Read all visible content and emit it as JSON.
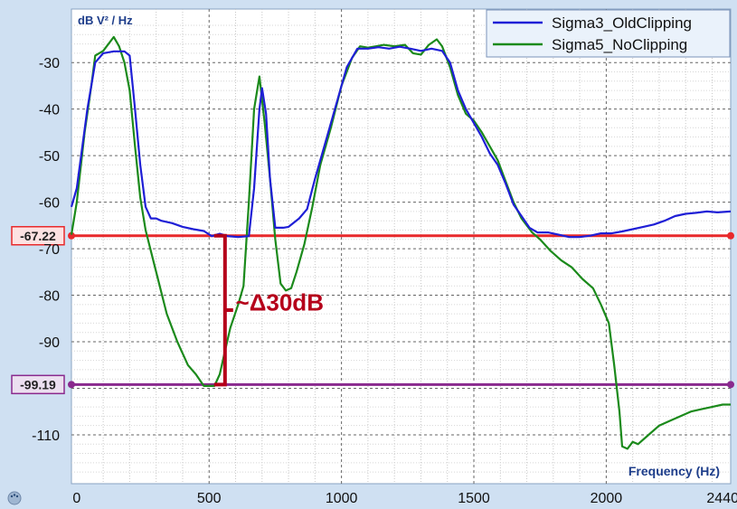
{
  "chart_data": {
    "type": "line",
    "ylabel": "dB V² / Hz",
    "xlabel": "Frequency (Hz)",
    "xlim": [
      -20,
      2470
    ],
    "ylim": [
      -120.5,
      -18.5
    ],
    "x_ticks": [
      0,
      500,
      1000,
      1500,
      2000,
      2440
    ],
    "y_ticks": [
      -30,
      -40,
      -50,
      -60,
      -70,
      -80,
      -90,
      -110
    ],
    "grid": true,
    "legend_position": "top-right",
    "series": [
      {
        "name": "Sigma3_OldClipping",
        "color": "#1f1fd6",
        "points": [
          [
            -20,
            -61
          ],
          [
            0,
            -57
          ],
          [
            40,
            -40
          ],
          [
            70,
            -30
          ],
          [
            100,
            -28
          ],
          [
            140,
            -27.6
          ],
          [
            180,
            -27.6
          ],
          [
            200,
            -28.5
          ],
          [
            220,
            -40
          ],
          [
            240,
            -52
          ],
          [
            260,
            -61
          ],
          [
            280,
            -63.5
          ],
          [
            300,
            -63.5
          ],
          [
            320,
            -64
          ],
          [
            360,
            -64.5
          ],
          [
            400,
            -65.3
          ],
          [
            440,
            -65.8
          ],
          [
            480,
            -66.2
          ],
          [
            510,
            -67.3
          ],
          [
            540,
            -66.8
          ],
          [
            570,
            -67.3
          ],
          [
            610,
            -67.5
          ],
          [
            650,
            -67.3
          ],
          [
            670,
            -57
          ],
          [
            690,
            -40
          ],
          [
            700,
            -35.5
          ],
          [
            715,
            -41
          ],
          [
            730,
            -55
          ],
          [
            750,
            -65.5
          ],
          [
            780,
            -65.5
          ],
          [
            800,
            -65.3
          ],
          [
            840,
            -63.5
          ],
          [
            870,
            -61.5
          ],
          [
            900,
            -55
          ],
          [
            940,
            -47
          ],
          [
            980,
            -39
          ],
          [
            1020,
            -31
          ],
          [
            1060,
            -27
          ],
          [
            1100,
            -27
          ],
          [
            1140,
            -26.7
          ],
          [
            1180,
            -27
          ],
          [
            1220,
            -26.6
          ],
          [
            1260,
            -27
          ],
          [
            1300,
            -27.5
          ],
          [
            1340,
            -27
          ],
          [
            1380,
            -27.5
          ],
          [
            1410,
            -30
          ],
          [
            1440,
            -36
          ],
          [
            1470,
            -40
          ],
          [
            1500,
            -43
          ],
          [
            1530,
            -46
          ],
          [
            1560,
            -49.5
          ],
          [
            1590,
            -52
          ],
          [
            1620,
            -56
          ],
          [
            1650,
            -60.5
          ],
          [
            1680,
            -63
          ],
          [
            1710,
            -65.5
          ],
          [
            1740,
            -66.5
          ],
          [
            1780,
            -66.5
          ],
          [
            1820,
            -67
          ],
          [
            1860,
            -67.5
          ],
          [
            1900,
            -67.5
          ],
          [
            1940,
            -67.2
          ],
          [
            1980,
            -66.7
          ],
          [
            2020,
            -66.7
          ],
          [
            2060,
            -66.3
          ],
          [
            2100,
            -65.8
          ],
          [
            2140,
            -65.3
          ],
          [
            2180,
            -64.8
          ],
          [
            2220,
            -64
          ],
          [
            2260,
            -63
          ],
          [
            2300,
            -62.5
          ],
          [
            2340,
            -62.3
          ],
          [
            2380,
            -62
          ],
          [
            2420,
            -62.2
          ],
          [
            2470,
            -62
          ]
        ]
      },
      {
        "name": "Sigma5_NoClipping",
        "color": "#1b8a1b",
        "points": [
          [
            -20,
            -67
          ],
          [
            0,
            -60
          ],
          [
            30,
            -45
          ],
          [
            55,
            -35
          ],
          [
            70,
            -28.5
          ],
          [
            100,
            -27.5
          ],
          [
            120,
            -26
          ],
          [
            140,
            -24.5
          ],
          [
            160,
            -26.5
          ],
          [
            180,
            -30
          ],
          [
            200,
            -36
          ],
          [
            220,
            -48
          ],
          [
            240,
            -59
          ],
          [
            260,
            -66
          ],
          [
            300,
            -75
          ],
          [
            340,
            -84
          ],
          [
            380,
            -90
          ],
          [
            420,
            -95
          ],
          [
            450,
            -97
          ],
          [
            480,
            -99.5
          ],
          [
            500,
            -99.5
          ],
          [
            520,
            -99.5
          ],
          [
            540,
            -97
          ],
          [
            560,
            -92
          ],
          [
            580,
            -87
          ],
          [
            610,
            -82
          ],
          [
            630,
            -78
          ],
          [
            650,
            -60
          ],
          [
            670,
            -40
          ],
          [
            690,
            -33
          ],
          [
            710,
            -43
          ],
          [
            730,
            -55
          ],
          [
            750,
            -68
          ],
          [
            770,
            -77.5
          ],
          [
            790,
            -79
          ],
          [
            810,
            -78.5
          ],
          [
            830,
            -75
          ],
          [
            860,
            -69
          ],
          [
            890,
            -61
          ],
          [
            920,
            -52
          ],
          [
            960,
            -44
          ],
          [
            1000,
            -35
          ],
          [
            1040,
            -29
          ],
          [
            1070,
            -26.5
          ],
          [
            1100,
            -26.8
          ],
          [
            1130,
            -26.5
          ],
          [
            1160,
            -26.2
          ],
          [
            1200,
            -26.5
          ],
          [
            1240,
            -26.2
          ],
          [
            1270,
            -28
          ],
          [
            1300,
            -28.3
          ],
          [
            1330,
            -26.2
          ],
          [
            1360,
            -25
          ],
          [
            1380,
            -26.5
          ],
          [
            1410,
            -31
          ],
          [
            1440,
            -37
          ],
          [
            1470,
            -41
          ],
          [
            1500,
            -42.5
          ],
          [
            1530,
            -45
          ],
          [
            1560,
            -48
          ],
          [
            1590,
            -51
          ],
          [
            1620,
            -55.5
          ],
          [
            1650,
            -60
          ],
          [
            1680,
            -63.5
          ],
          [
            1720,
            -66.5
          ],
          [
            1750,
            -68
          ],
          [
            1790,
            -70.5
          ],
          [
            1830,
            -72.5
          ],
          [
            1870,
            -74
          ],
          [
            1910,
            -76.5
          ],
          [
            1950,
            -78.5
          ],
          [
            1980,
            -82
          ],
          [
            2010,
            -86
          ],
          [
            2030,
            -95
          ],
          [
            2050,
            -105
          ],
          [
            2060,
            -112.5
          ],
          [
            2080,
            -113
          ],
          [
            2100,
            -111.5
          ],
          [
            2120,
            -112
          ],
          [
            2160,
            -110
          ],
          [
            2200,
            -108
          ],
          [
            2240,
            -107
          ],
          [
            2280,
            -106
          ],
          [
            2320,
            -105
          ],
          [
            2360,
            -104.5
          ],
          [
            2400,
            -104
          ],
          [
            2440,
            -103.5
          ],
          [
            2470,
            -103.5
          ]
        ]
      }
    ],
    "reference_lines": [
      {
        "label": "-67.22",
        "value": -67.22,
        "color": "#e8292b"
      },
      {
        "label": "-99.19",
        "value": -99.19,
        "color": "#8a2a8e"
      }
    ],
    "bracket": {
      "x": 560,
      "y_top": -67.22,
      "y_bottom": -99.19,
      "color": "#b5001a"
    },
    "annotation": {
      "text": "~Δ30dB",
      "x": 600,
      "y": -83.3,
      "color": "#b5001a"
    }
  }
}
